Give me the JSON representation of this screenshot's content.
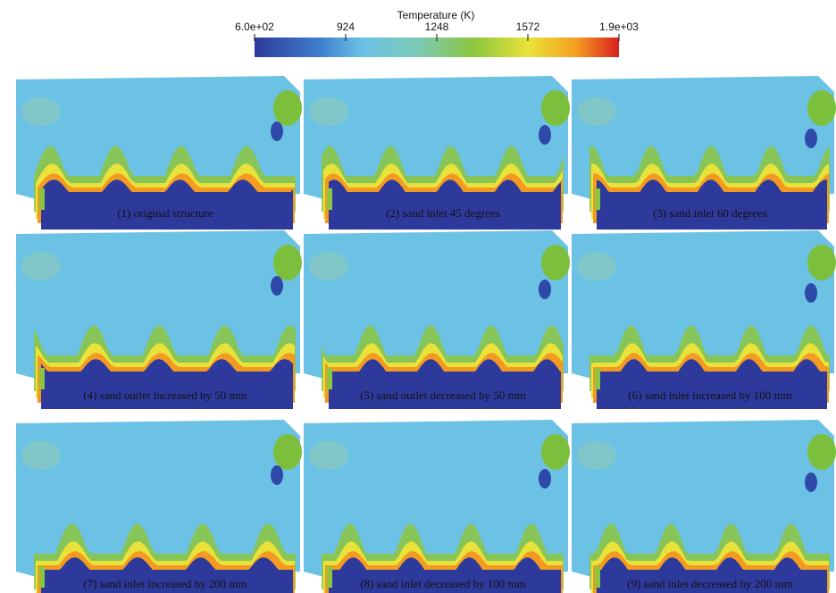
{
  "colorbar": {
    "title": "Temperature (K)",
    "range": [
      600,
      1896
    ],
    "ticks": [
      {
        "value": 600,
        "label": "6.0e+02"
      },
      924,
      1248,
      1572,
      {
        "value": 1896,
        "label": "1.9e+03"
      }
    ]
  },
  "panels": [
    {
      "caption": "(1) original structure"
    },
    {
      "caption": "(2) sand inlet 45 degrees"
    },
    {
      "caption": "(3) sand inlet 60 degrees"
    },
    {
      "caption": "(4) sand outlet increased by 50 mm"
    },
    {
      "caption": "(5) sand outlet decreased by 50 mm"
    },
    {
      "caption": "(6) sand inlet increased by 100 mm"
    },
    {
      "caption": "(7) sand inlet increased by 200 mm"
    },
    {
      "caption": "(8) sand inlet decreased by 100 mm"
    },
    {
      "caption": "(9) sand inlet decreased by 200 mm"
    }
  ]
}
